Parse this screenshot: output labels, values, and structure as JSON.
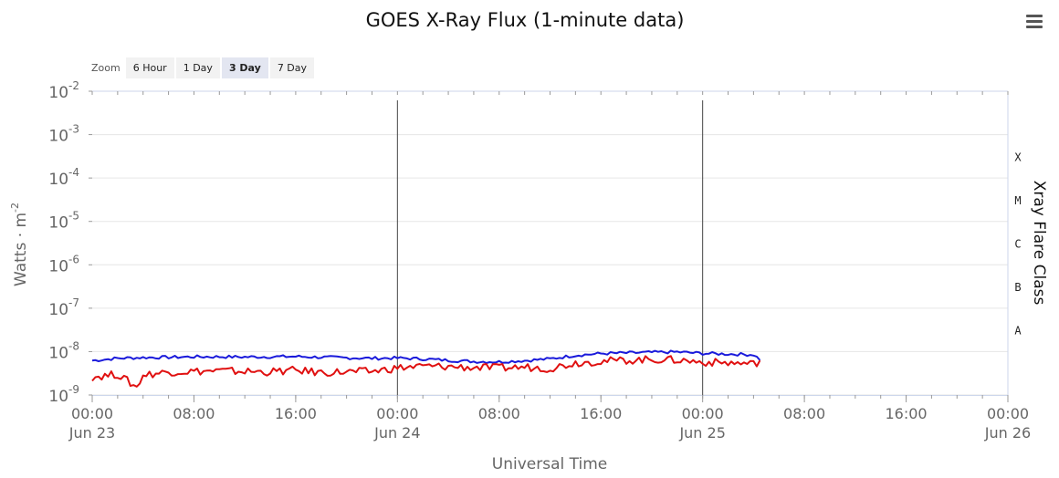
{
  "header": {
    "title": "GOES X-Ray Flux (1-minute data)"
  },
  "zoom": {
    "label": "Zoom",
    "buttons": [
      "6 Hour",
      "1 Day",
      "3 Day",
      "7 Day"
    ],
    "active": "3 Day"
  },
  "icons": {
    "menu": "hamburger-menu-icon"
  },
  "chart_data": {
    "type": "line",
    "title": "GOES X-Ray Flux (1-minute data)",
    "xlabel": "Universal Time",
    "ylabel": "Watts · m",
    "ylabel_superscript": "-2",
    "y2label": "Xray Flare Class",
    "y_scale": "log",
    "ylim": [
      "1e-9",
      "1e-2"
    ],
    "y_ticks": [
      {
        "base": "10",
        "exp": "-2",
        "value": 0.01
      },
      {
        "base": "10",
        "exp": "-3",
        "value": 0.001
      },
      {
        "base": "10",
        "exp": "-4",
        "value": 0.0001
      },
      {
        "base": "10",
        "exp": "-5",
        "value": 1e-05
      },
      {
        "base": "10",
        "exp": "-6",
        "value": 1e-06
      },
      {
        "base": "10",
        "exp": "-7",
        "value": 1e-07
      },
      {
        "base": "10",
        "exp": "-8",
        "value": 1e-08
      },
      {
        "base": "10",
        "exp": "-9",
        "value": 1e-09
      }
    ],
    "flare_classes": [
      {
        "label": "X",
        "value": 0.0003
      },
      {
        "label": "M",
        "value": 3e-05
      },
      {
        "label": "C",
        "value": 3e-06
      },
      {
        "label": "B",
        "value": 3e-07
      },
      {
        "label": "A",
        "value": 3e-08
      }
    ],
    "xlim": [
      "Jun 23 00:00",
      "Jun 26 00:00"
    ],
    "x_ticks": [
      {
        "time": "00:00",
        "date": "Jun 23",
        "hours": 0
      },
      {
        "time": "08:00",
        "date": "",
        "hours": 8
      },
      {
        "time": "16:00",
        "date": "",
        "hours": 16
      },
      {
        "time": "00:00",
        "date": "Jun 24",
        "hours": 24
      },
      {
        "time": "08:00",
        "date": "",
        "hours": 32
      },
      {
        "time": "16:00",
        "date": "",
        "hours": 40
      },
      {
        "time": "00:00",
        "date": "Jun 25",
        "hours": 48
      },
      {
        "time": "08:00",
        "date": "",
        "hours": 56
      },
      {
        "time": "16:00",
        "date": "",
        "hours": 64
      },
      {
        "time": "00:00",
        "date": "Jun 26",
        "hours": 72
      }
    ],
    "day_markers_hours": [
      24,
      48
    ],
    "series": [
      {
        "color": "#1a1adb",
        "x_hours": [
          0,
          2,
          4,
          6,
          8,
          10,
          12,
          14,
          16,
          18,
          20,
          22,
          24,
          26,
          28,
          30,
          32,
          34,
          36,
          38,
          40,
          42,
          44,
          46,
          48,
          50,
          52,
          52.5
        ],
        "values": [
          6.2e-09,
          7e-09,
          7.3e-09,
          7.4e-09,
          7.6e-09,
          7.6e-09,
          7.5e-09,
          7.6e-09,
          7.7e-09,
          7.4e-09,
          7.2e-09,
          7e-09,
          7.1e-09,
          6.8e-09,
          6.3e-09,
          5.9e-09,
          5.8e-09,
          6.2e-09,
          6.8e-09,
          8.2e-09,
          9e-09,
          9.3e-09,
          9.6e-09,
          9.8e-09,
          9.1e-09,
          8.8e-09,
          8.5e-09,
          6.6e-09
        ]
      },
      {
        "color": "#e01010",
        "x_hours": [
          0,
          2,
          3.5,
          4,
          6,
          8,
          10,
          12,
          14,
          16,
          18,
          20,
          22,
          24,
          26,
          28,
          30,
          32,
          34,
          36,
          38,
          40,
          42,
          44,
          46,
          48,
          50,
          52,
          52.5
        ],
        "values": [
          2.6e-09,
          3e-09,
          1.5e-09,
          2.9e-09,
          3.4e-09,
          3.5e-09,
          3.6e-09,
          3.5e-09,
          3.4e-09,
          3.7e-09,
          3.3e-09,
          3.4e-09,
          3.5e-09,
          4.2e-09,
          4.6e-09,
          4.5e-09,
          4.3e-09,
          4.2e-09,
          4.4e-09,
          4.1e-09,
          5.5e-09,
          6e-09,
          6.3e-09,
          6.6e-09,
          6.4e-09,
          5.7e-09,
          5.5e-09,
          5.2e-09,
          6.1e-09
        ]
      }
    ]
  }
}
